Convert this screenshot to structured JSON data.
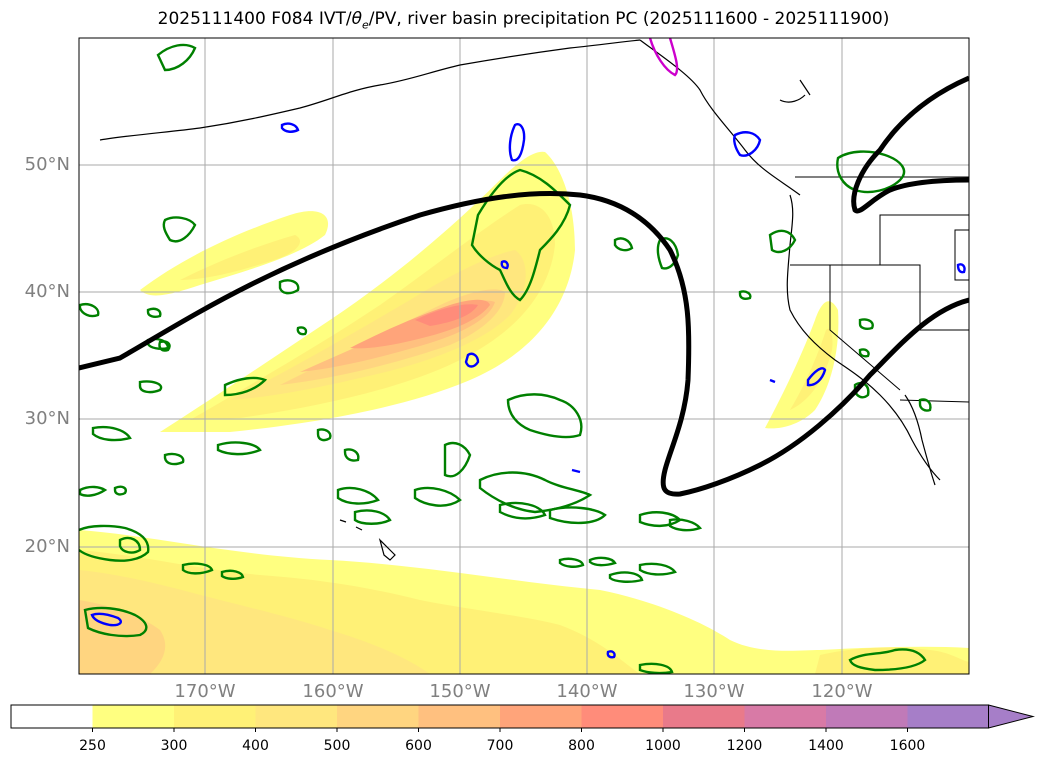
{
  "title": {
    "prefix": "2025111400 F084 IVT/",
    "theta": "θ",
    "theta_sub": "e",
    "suffix": "/PV, river basin precipitation PC (2025111600 - 2025111900)"
  },
  "map": {
    "lat_labels": [
      "50°N",
      "40°N",
      "30°N",
      "20°N"
    ],
    "lon_labels": [
      "170°W",
      "160°W",
      "150°W",
      "140°W",
      "130°W",
      "120°W"
    ]
  },
  "colorbar": {
    "levels": [
      "250",
      "300",
      "400",
      "500",
      "600",
      "700",
      "800",
      "1000",
      "1200",
      "1400",
      "1600"
    ],
    "colors": [
      "#ffffff",
      "#ffff80",
      "#fff176",
      "#ffe77e",
      "#ffd580",
      "#ffc07f",
      "#ffa47a",
      "#ff8c7a",
      "#e97a8a",
      "#d87aa6",
      "#c07ab8",
      "#a67ec8"
    ]
  },
  "legend_colors": {
    "ivt_fill": "#ffff80",
    "pv_contour": "#000000",
    "precip_green": "#008000",
    "precip_blue": "#0000ff",
    "precip_magenta": "#cc00cc"
  }
}
